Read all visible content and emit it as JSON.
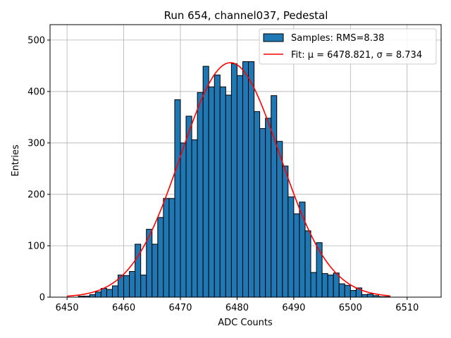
{
  "chart_data": {
    "type": "bar",
    "title": "Run 654, channel037, Pedestal",
    "xlabel": "ADC Counts",
    "ylabel": "Entries",
    "xlim": [
      6447,
      6516
    ],
    "ylim": [
      0,
      530
    ],
    "xticks": [
      6450,
      6460,
      6470,
      6480,
      6490,
      6500,
      6510
    ],
    "yticks": [
      0,
      100,
      200,
      300,
      400,
      500
    ],
    "grid": true,
    "legend_position": "top-right",
    "colors": {
      "bar_fill": "#1f77b4",
      "bar_edge": "#000000",
      "fit_line": "#ff0000"
    },
    "series": [
      {
        "name": "Samples: RMS=8.38",
        "kind": "histogram",
        "bin_width": 1,
        "bin_starts": [
          6452,
          6453,
          6454,
          6455,
          6456,
          6457,
          6458,
          6459,
          6460,
          6461,
          6462,
          6463,
          6464,
          6465,
          6466,
          6467,
          6468,
          6469,
          6470,
          6471,
          6472,
          6473,
          6474,
          6475,
          6476,
          6477,
          6478,
          6479,
          6480,
          6481,
          6482,
          6483,
          6484,
          6485,
          6486,
          6487,
          6488,
          6489,
          6490,
          6491,
          6492,
          6493,
          6494,
          6495,
          6496,
          6497,
          6498,
          6499,
          6500,
          6501,
          6502,
          6503,
          6504,
          6505,
          6506
        ],
        "values": [
          2,
          2,
          5,
          10,
          17,
          15,
          22,
          43,
          42,
          50,
          103,
          43,
          132,
          103,
          155,
          192,
          192,
          384,
          300,
          352,
          306,
          398,
          449,
          409,
          432,
          409,
          393,
          454,
          431,
          458,
          458,
          361,
          328,
          348,
          392,
          303,
          255,
          195,
          162,
          185,
          129,
          48,
          106,
          46,
          43,
          47,
          26,
          23,
          13,
          18,
          5,
          6,
          3,
          1,
          1
        ]
      },
      {
        "name": "Fit: μ = 6478.821, σ = 8.734",
        "kind": "gaussian",
        "mu": 6478.821,
        "sigma": 8.734,
        "amplitude": 456,
        "x_range": [
          6450,
          6507
        ]
      }
    ]
  }
}
